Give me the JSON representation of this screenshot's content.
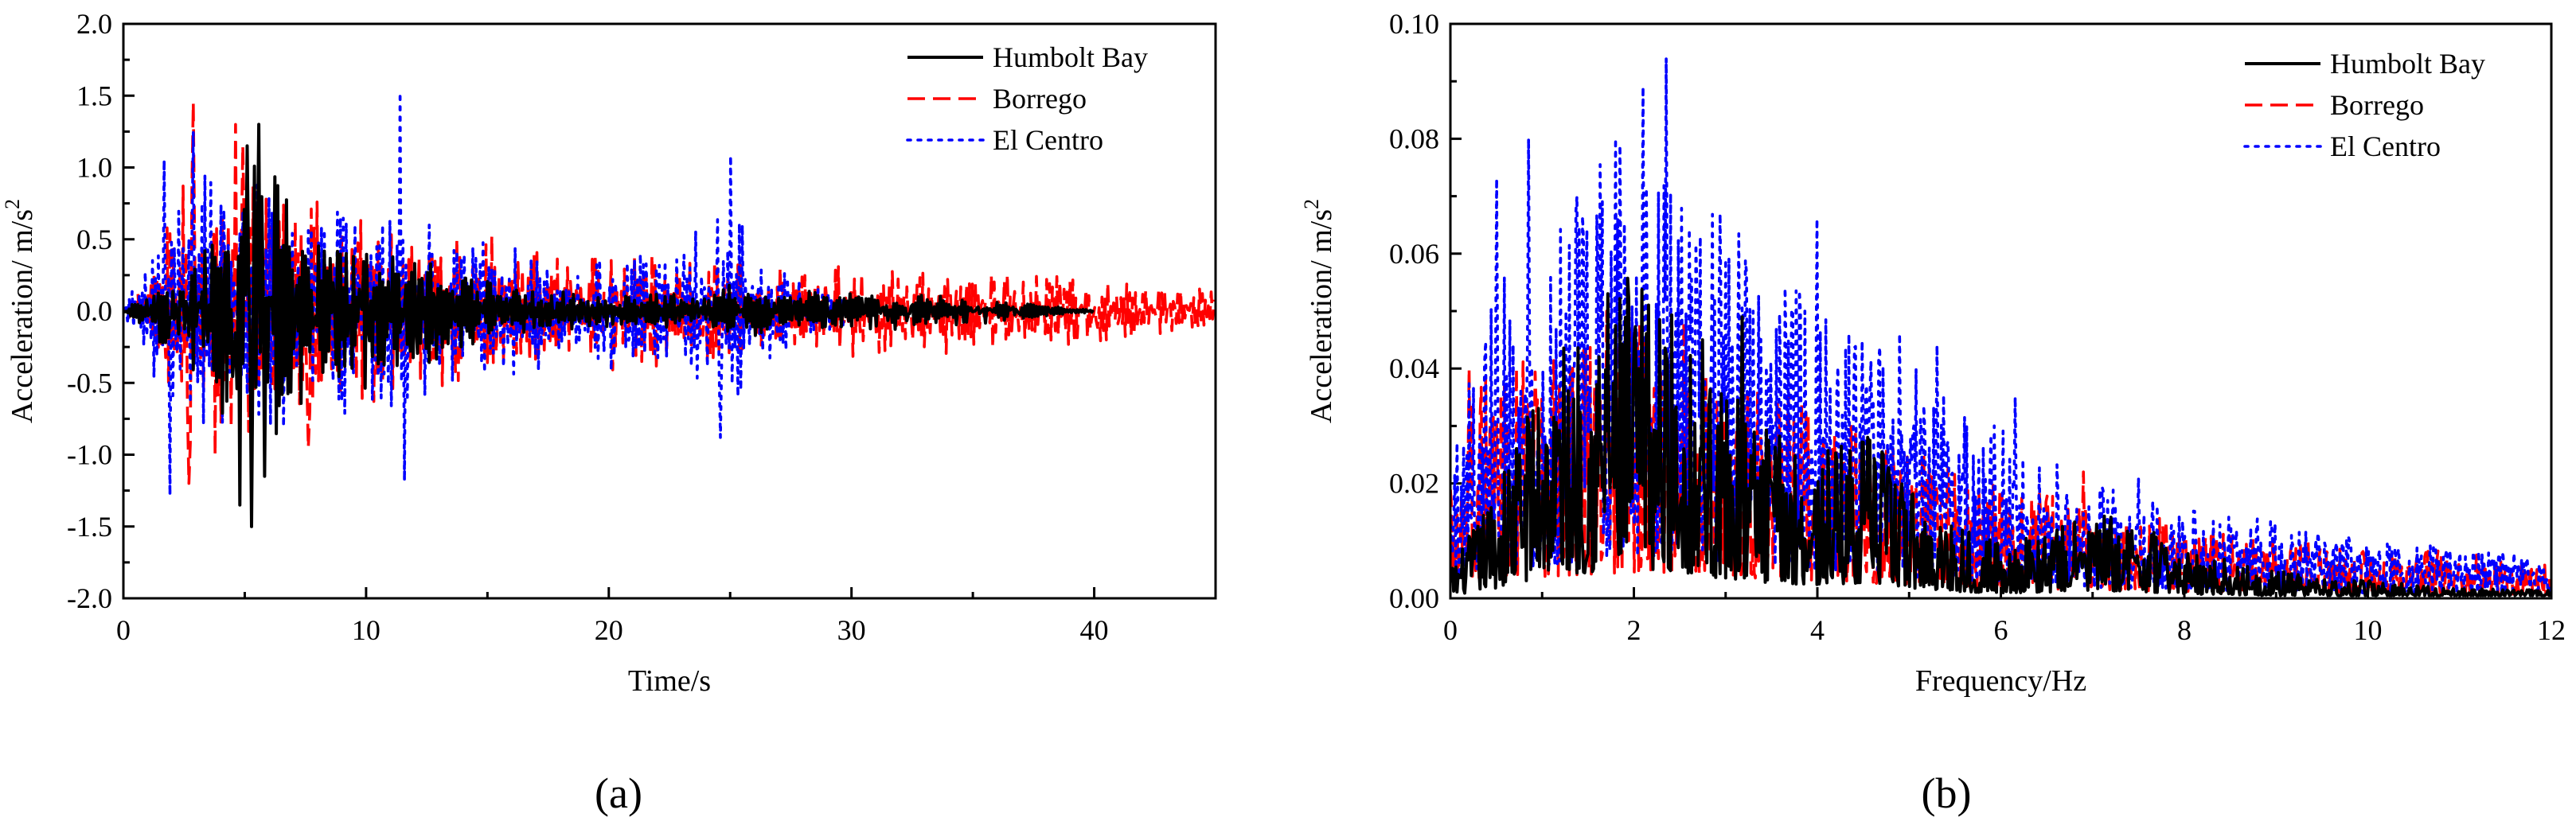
{
  "chart_data": [
    {
      "id": "a",
      "type": "line",
      "panel_label": "(a)",
      "xlabel": "Time/s",
      "ylabel": "Acceleration/ m/s",
      "ylabel_sup": "2",
      "xlim": [
        0,
        45
      ],
      "ylim": [
        -2.0,
        2.0
      ],
      "xticks": [
        0,
        10,
        20,
        30,
        40
      ],
      "xtick_labels": [
        "0",
        "10",
        "20",
        "30",
        "40"
      ],
      "yticks": [
        -2.0,
        -1.5,
        -1.0,
        -0.5,
        0.0,
        0.5,
        1.0,
        1.5,
        2.0
      ],
      "ytick_labels": [
        "-2.0",
        "-1.5",
        "-1.0",
        "-0.5",
        "0.0",
        "0.5",
        "1.0",
        "1.5",
        "2.0"
      ],
      "legend_position": "top-right",
      "series": [
        {
          "name": "Humbolt Bay",
          "color": "#000000",
          "dash": "solid",
          "x": [
            0,
            1,
            2,
            3,
            4,
            5,
            6,
            7,
            8,
            9,
            10,
            11,
            12,
            13,
            14,
            15,
            16,
            17,
            18,
            19,
            20,
            21,
            22,
            23,
            24,
            25,
            26,
            27,
            28,
            29,
            30,
            31,
            32,
            33,
            34,
            35,
            36,
            37,
            38,
            39,
            40
          ],
          "amplitude": [
            0.02,
            0.12,
            0.35,
            0.5,
            0.8,
            1.4,
            1.3,
            0.7,
            0.55,
            0.45,
            0.55,
            0.4,
            0.55,
            0.35,
            0.25,
            0.22,
            0.18,
            0.15,
            0.15,
            0.12,
            0.12,
            0.12,
            0.12,
            0.12,
            0.15,
            0.2,
            0.2,
            0.18,
            0.15,
            0.15,
            0.13,
            0.13,
            0.13,
            0.12,
            0.11,
            0.1,
            0.08,
            0.06,
            0.04,
            0.02,
            0.01
          ],
          "peaks": [
            [
              4.8,
              -1.35
            ],
            [
              5.3,
              -1.5
            ],
            [
              5.6,
              1.3
            ],
            [
              5.1,
              1.15
            ],
            [
              5.8,
              -1.15
            ]
          ],
          "extent": [
            0,
            40
          ]
        },
        {
          "name": "Borrego",
          "color": "#ff0000",
          "dash": "dashed",
          "x": [
            0,
            1,
            2,
            3,
            4,
            5,
            6,
            7,
            8,
            9,
            10,
            11,
            12,
            13,
            14,
            15,
            16,
            17,
            18,
            19,
            20,
            21,
            22,
            23,
            24,
            25,
            26,
            27,
            28,
            29,
            30,
            31,
            32,
            33,
            34,
            35,
            36,
            37,
            38,
            39,
            40,
            41,
            42,
            43,
            44,
            45
          ],
          "amplitude": [
            0.05,
            0.2,
            0.75,
            1.2,
            1.1,
            1.2,
            0.9,
            0.9,
            0.8,
            0.7,
            0.8,
            0.7,
            0.6,
            0.6,
            0.55,
            0.55,
            0.5,
            0.5,
            0.45,
            0.45,
            0.45,
            0.42,
            0.42,
            0.4,
            0.4,
            0.4,
            0.38,
            0.35,
            0.35,
            0.35,
            0.35,
            0.3,
            0.3,
            0.3,
            0.3,
            0.3,
            0.28,
            0.28,
            0.26,
            0.26,
            0.25,
            0.25,
            0.25,
            0.22,
            0.2,
            0.15
          ],
          "peaks": [
            [
              2.9,
              1.45
            ],
            [
              2.7,
              -1.2
            ],
            [
              4.6,
              1.3
            ],
            [
              4.9,
              1.15
            ],
            [
              3.8,
              -1.0
            ],
            [
              7.6,
              -0.95
            ]
          ],
          "extent": [
            0,
            45
          ]
        },
        {
          "name": "El Centro",
          "color": "#0000ff",
          "dash": "dotted",
          "x": [
            0,
            1,
            2,
            3,
            4,
            5,
            6,
            7,
            8,
            9,
            10,
            11,
            12,
            13,
            14,
            15,
            16,
            17,
            18,
            19,
            20,
            21,
            22,
            23,
            24,
            25,
            26,
            27,
            28,
            29,
            30
          ],
          "amplitude": [
            0.08,
            0.35,
            1.0,
            1.05,
            0.95,
            0.95,
            0.9,
            0.8,
            0.75,
            0.8,
            0.8,
            0.8,
            0.6,
            0.6,
            0.55,
            0.5,
            0.45,
            0.5,
            0.4,
            0.4,
            0.5,
            0.45,
            0.4,
            0.6,
            0.7,
            0.8,
            0.6,
            0.35,
            0.25,
            0.2,
            0.1
          ],
          "peaks": [
            [
              1.9,
              -1.28
            ],
            [
              2.9,
              1.25
            ],
            [
              11.4,
              1.52
            ],
            [
              11.6,
              -1.18
            ],
            [
              25.0,
              1.08
            ],
            [
              24.6,
              -0.88
            ],
            [
              1.7,
              1.05
            ]
          ],
          "extent": [
            0,
            30
          ]
        }
      ]
    },
    {
      "id": "b",
      "type": "line",
      "panel_label": "(b)",
      "xlabel": "Frequency/Hz",
      "ylabel": "Acceleration/ m/s",
      "ylabel_sup": "2",
      "xlim": [
        0,
        12
      ],
      "ylim": [
        0.0,
        0.1
      ],
      "xticks": [
        0,
        2,
        4,
        6,
        8,
        10,
        12
      ],
      "xtick_labels": [
        "0",
        "2",
        "4",
        "6",
        "8",
        "10",
        "12"
      ],
      "yticks": [
        0.0,
        0.02,
        0.04,
        0.06,
        0.08,
        0.1
      ],
      "ytick_labels": [
        "0.00",
        "0.02",
        "0.04",
        "0.06",
        "0.08",
        "0.10"
      ],
      "legend_position": "top-right",
      "series": [
        {
          "name": "Humbolt Bay",
          "color": "#000000",
          "dash": "solid",
          "x": [
            0,
            0.5,
            1,
            1.5,
            2,
            2.5,
            3,
            3.5,
            4,
            4.5,
            5,
            5.5,
            6,
            6.5,
            7,
            7.5,
            8,
            8.5,
            9,
            9.5,
            10,
            10.5,
            11,
            11.5,
            12
          ],
          "envelope": [
            0.003,
            0.012,
            0.025,
            0.03,
            0.035,
            0.03,
            0.022,
            0.018,
            0.015,
            0.018,
            0.012,
            0.008,
            0.006,
            0.007,
            0.009,
            0.008,
            0.005,
            0.004,
            0.003,
            0.002,
            0.002,
            0.0015,
            0.001,
            0.001,
            0.001
          ],
          "peaks": [
            [
              1.72,
              0.053
            ],
            [
              3.18,
              0.049
            ],
            [
              2.75,
              0.045
            ],
            [
              2.05,
              0.04
            ],
            [
              4.55,
              0.028
            ]
          ],
          "extent": [
            0,
            12
          ]
        },
        {
          "name": "Borrego",
          "color": "#ff0000",
          "dash": "dashed",
          "x": [
            0,
            0.5,
            1,
            1.5,
            2,
            2.5,
            3,
            3.5,
            4,
            4.5,
            5,
            5.5,
            6,
            6.5,
            7,
            7.5,
            8,
            8.5,
            9,
            9.5,
            10,
            10.5,
            11,
            11.5,
            12
          ],
          "envelope": [
            0.02,
            0.025,
            0.025,
            0.028,
            0.03,
            0.028,
            0.025,
            0.022,
            0.02,
            0.018,
            0.016,
            0.014,
            0.012,
            0.011,
            0.01,
            0.009,
            0.008,
            0.007,
            0.006,
            0.006,
            0.005,
            0.005,
            0.005,
            0.005,
            0.004
          ],
          "peaks": [
            [
              0.2,
              0.04
            ],
            [
              1.7,
              0.05
            ],
            [
              2.55,
              0.048
            ],
            [
              6.9,
              0.022
            ],
            [
              9.35,
              0.01
            ]
          ],
          "extent": [
            0,
            12
          ]
        },
        {
          "name": "El Centro",
          "color": "#0000ff",
          "dash": "dotted",
          "x": [
            0,
            0.5,
            1,
            1.5,
            2,
            2.5,
            3,
            3.5,
            4,
            4.5,
            5,
            5.5,
            6,
            6.5,
            7,
            7.5,
            8,
            8.5,
            9,
            9.5,
            10,
            10.5,
            11,
            11.5,
            12
          ],
          "envelope": [
            0.015,
            0.04,
            0.035,
            0.045,
            0.05,
            0.045,
            0.04,
            0.035,
            0.032,
            0.028,
            0.025,
            0.022,
            0.018,
            0.015,
            0.012,
            0.011,
            0.01,
            0.009,
            0.008,
            0.007,
            0.006,
            0.006,
            0.005,
            0.005,
            0.004
          ],
          "peaks": [
            [
              0.85,
              0.08
            ],
            [
              1.8,
              0.08
            ],
            [
              2.1,
              0.089
            ],
            [
              2.35,
              0.094
            ],
            [
              3.0,
              0.059
            ],
            [
              3.3,
              0.05
            ],
            [
              4.0,
              0.066
            ],
            [
              4.9,
              0.046
            ],
            [
              5.3,
              0.044
            ],
            [
              6.15,
              0.035
            ],
            [
              7.5,
              0.021
            ],
            [
              0.5,
              0.073
            ]
          ],
          "extent": [
            0,
            12
          ]
        }
      ]
    }
  ]
}
